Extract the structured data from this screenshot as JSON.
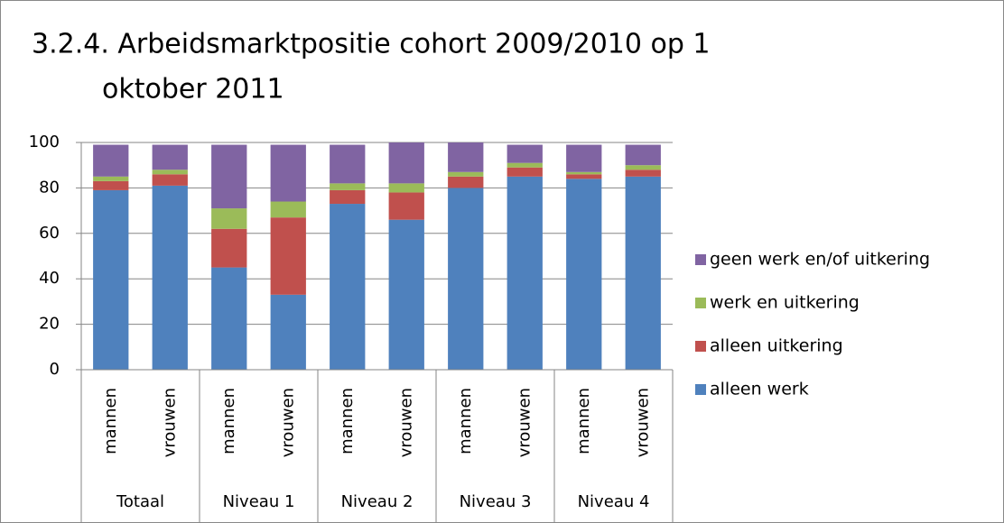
{
  "chart_data": {
    "type": "stacked_bar",
    "title_lines": [
      "3.2.4. Arbeidsmarktpositie cohort 2009/2010 op 1",
      "oktober 2011"
    ],
    "categories": [
      "mannen",
      "vrouwen",
      "mannen",
      "vrouwen",
      "mannen",
      "vrouwen",
      "mannen",
      "vrouwen",
      "mannen",
      "vrouwen"
    ],
    "groups": [
      "Totaal",
      "Niveau 1",
      "Niveau 2",
      "Niveau 3",
      "Niveau 4"
    ],
    "series": [
      {
        "name": "alleen werk",
        "color": "#4f81bd",
        "values": [
          79,
          81,
          45,
          33,
          73,
          66,
          80,
          85,
          84,
          85
        ]
      },
      {
        "name": "alleen uitkering",
        "color": "#c0504d",
        "values": [
          4,
          5,
          17,
          34,
          6,
          12,
          5,
          4,
          2,
          3
        ]
      },
      {
        "name": "werk en uitkering",
        "color": "#9bbb59",
        "values": [
          2,
          2,
          9,
          7,
          3,
          4,
          2,
          2,
          1,
          2
        ]
      },
      {
        "name": "geen werk en/of uitkering",
        "color": "#8064a2",
        "values": [
          14,
          11,
          28,
          25,
          17,
          18,
          13,
          8,
          12,
          9
        ]
      }
    ],
    "ylim": [
      0,
      100
    ],
    "yticks": [
      0,
      20,
      40,
      60,
      80,
      100
    ],
    "grid": true,
    "legend": "right"
  }
}
